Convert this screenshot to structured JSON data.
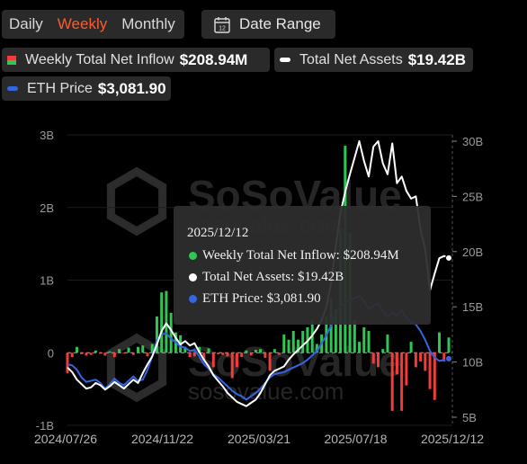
{
  "tabs": [
    {
      "label": "Daily",
      "active": false
    },
    {
      "label": "Weekly",
      "active": true
    },
    {
      "label": "Monthly",
      "active": false
    }
  ],
  "date_range": {
    "label": "Date Range",
    "icon": "calendar-icon",
    "icon_text": "12"
  },
  "legend": [
    {
      "label": "Weekly Total Net Inflow",
      "value": "$208.94M",
      "marker": "bar-icon"
    },
    {
      "label": "Total Net Assets",
      "value": "$19.42B",
      "marker": "line-icon",
      "color": "#ffffff"
    },
    {
      "label": "ETH Price",
      "value": "$3,081.90",
      "marker": "line-icon",
      "color": "#3465e3"
    }
  ],
  "watermark": {
    "brand": "SoSoValue",
    "site": "sosovalue.com"
  },
  "tooltip": {
    "date": "2025/12/12",
    "rows": [
      {
        "text": "Weekly Total Net Inflow: $208.94M",
        "color": "#2fc653"
      },
      {
        "text": "Total Net Assets: $19.42B",
        "color": "#ffffff"
      },
      {
        "text": "ETH Price: $3,081.90",
        "color": "#3465e3"
      }
    ]
  },
  "chart_data": {
    "type": "bar",
    "x_labels": [
      "2024/07/26",
      "2024/11/22",
      "2025/03/21",
      "2025/07/18",
      "2025/12/12"
    ],
    "left_axis": {
      "ticks": [
        "3B",
        "2B",
        "1B",
        "0",
        "-1B"
      ],
      "range": [
        -1,
        3
      ],
      "unit": "B USD"
    },
    "right_axis": {
      "ticks": [
        "30B",
        "25B",
        "20B",
        "15B",
        "10B",
        "5B"
      ],
      "range": [
        5,
        30
      ],
      "unit": "B USD"
    },
    "colors": {
      "positive": "#2fc653",
      "negative": "#f23c3c",
      "assets": "#ffffff",
      "eth": "#3465e3"
    },
    "series": [
      {
        "name": "Weekly Total Net Inflow",
        "kind": "bar",
        "axis": "left",
        "values": [
          -0.28,
          -0.06,
          0.08,
          -0.02,
          -0.04,
          -0.03,
          0.03,
          -0.01,
          -0.04,
          0.02,
          -0.06,
          0.05,
          -0.01,
          0.07,
          -0.03,
          0.08,
          0.1,
          -0.05,
          0.12,
          0.5,
          0.83,
          0.85,
          0.55,
          0.28,
          0.24,
          0.08,
          -0.06,
          -0.05,
          0.08,
          -0.1,
          0.06,
          -0.2,
          -0.02,
          -0.03,
          -0.05,
          -0.35,
          -0.2,
          -0.06,
          0.03,
          -0.04,
          0.04,
          0.05,
          -0.07,
          -0.25,
          0.05,
          -0.03,
          0.25,
          0.18,
          0.3,
          0.18,
          0.3,
          0.35,
          0.45,
          0.12,
          0.25,
          0.5,
          0.75,
          0.6,
          1.7,
          2.85,
          1.65,
          0.45,
          0.15,
          0.35,
          0.3,
          -0.15,
          -0.2,
          0.05,
          0.25,
          -0.8,
          -0.3,
          -0.8,
          -0.45,
          0.15,
          -0.2,
          -0.12,
          -0.25,
          -0.5,
          -0.65,
          0.28,
          -0.12,
          0.21
        ]
      },
      {
        "name": "Total Net Assets",
        "kind": "line",
        "axis": "right",
        "values": [
          9.5,
          9.1,
          8.4,
          8.0,
          7.6,
          7.7,
          8.1,
          7.9,
          7.5,
          7.8,
          8.2,
          7.9,
          7.6,
          8.0,
          8.4,
          8.1,
          9.0,
          9.8,
          10.5,
          11.6,
          12.8,
          13.5,
          12.9,
          12.2,
          11.6,
          11.9,
          11.5,
          11.7,
          10.9,
          10.2,
          9.6,
          8.8,
          8.3,
          7.8,
          7.2,
          6.8,
          6.4,
          6.2,
          6.0,
          6.3,
          6.6,
          7.2,
          8.0,
          8.8,
          9.2,
          9.4,
          9.6,
          10.2,
          10.7,
          11.1,
          11.5,
          11.9,
          12.4,
          13.0,
          13.8,
          15.0,
          17.1,
          20.5,
          23.5,
          25.4,
          27.0,
          28.5,
          30.0,
          28.2,
          26.8,
          29.5,
          30.0,
          28.0,
          27.0,
          29.8,
          26.2,
          26.8,
          25.5,
          24.8,
          25.0,
          22.0,
          20.2,
          16.5,
          18.0,
          19.4,
          19.6,
          19.42
        ]
      },
      {
        "name": "ETH Price",
        "kind": "line",
        "axis": "right",
        "values": [
          9.8,
          9.7,
          9.3,
          8.6,
          8.2,
          8.3,
          8.4,
          8.1,
          7.6,
          8.0,
          8.5,
          8.1,
          7.9,
          8.3,
          8.7,
          8.3,
          8.4,
          9.3,
          10.5,
          12.0,
          12.5,
          12.6,
          12.1,
          11.8,
          11.4,
          11.3,
          11.0,
          11.1,
          10.5,
          9.8,
          9.4,
          8.9,
          8.6,
          8.2,
          7.8,
          7.4,
          7.1,
          6.9,
          6.6,
          6.9,
          7.2,
          7.6,
          8.1,
          8.6,
          8.9,
          9.0,
          9.1,
          9.3,
          9.5,
          9.7,
          9.9,
          10.2,
          10.6,
          11.0,
          11.7,
          12.4,
          13.3,
          14.4,
          15.0,
          15.3,
          15.6,
          15.8,
          16.0,
          15.5,
          14.8,
          15.1,
          15.3,
          14.6,
          14.1,
          14.5,
          14.2,
          14.7,
          14.0,
          13.6,
          13.4,
          12.8,
          12.0,
          11.0,
          10.4,
          10.1,
          10.2,
          10.3
        ]
      }
    ]
  }
}
